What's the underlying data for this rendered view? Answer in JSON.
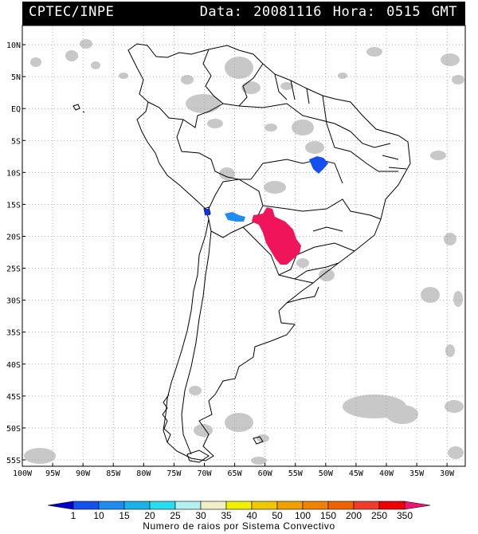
{
  "header": {
    "source": "CPTEC/INPE",
    "datetime": "Data: 20081116 Hora: 0515 GMT"
  },
  "map": {
    "lat_labels": [
      "10N",
      "5N",
      "EQ",
      "5S",
      "10S",
      "15S",
      "20S",
      "25S",
      "30S",
      "35S",
      "40S",
      "45S",
      "50S",
      "55S"
    ],
    "lon_labels": [
      "100W",
      "95W",
      "90W",
      "85W",
      "80W",
      "75W",
      "70W",
      "65W",
      "60W",
      "55W",
      "50W",
      "45W",
      "40W",
      "35W",
      "30W"
    ],
    "lat_range": [
      -56,
      13
    ],
    "lon_range": [
      -100,
      -27
    ],
    "colors": {
      "cloud": "#c8c8c8",
      "grid": "#9a9a9a",
      "border": "#000000",
      "storm_max": "#f0145a",
      "storm_mid": "#1e8cf0",
      "storm_low": "#1432e6"
    }
  },
  "colorbar": {
    "ticks": [
      "1",
      "10",
      "15",
      "20",
      "25",
      "30",
      "35",
      "40",
      "50",
      "100",
      "150",
      "200",
      "250",
      "350"
    ],
    "colors": [
      "#0000c8",
      "#1450f0",
      "#1e8cf0",
      "#18b4e8",
      "#28dcf0",
      "#b4f0f0",
      "#f0f0c8",
      "#f0f000",
      "#f0c800",
      "#f0a000",
      "#f08200",
      "#f06400",
      "#f03c28",
      "#f00000",
      "#f0146e"
    ],
    "title": "Numero de raios por Sistema Convectivo"
  }
}
